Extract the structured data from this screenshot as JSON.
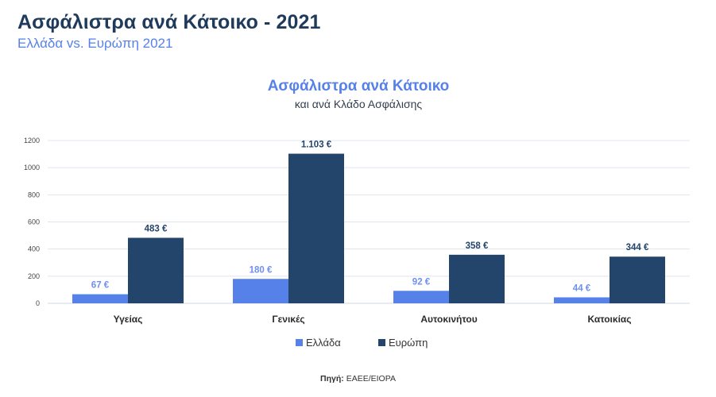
{
  "header": {
    "title": "Ασφάλιστρα ανά Κάτοικο - 2021",
    "subtitle": "Ελλάδα vs. Ευρώπη 2021"
  },
  "chart_data": {
    "type": "bar",
    "title": "Ασφάλιστρα ανά Κάτοικο",
    "subtitle": "και ανά Κλάδο Ασφάλισης",
    "categories": [
      "Υγείας",
      "Γενικές",
      "Αυτοκινήτου",
      "Κατοικίας"
    ],
    "series": [
      {
        "name": "Ελλάδα",
        "values": [
          67,
          180,
          92,
          44
        ],
        "labels": [
          "67 €",
          "180 €",
          "92 €",
          "44 €"
        ],
        "color": "#5681e8"
      },
      {
        "name": "Ευρώπη",
        "values": [
          483,
          1103,
          358,
          344
        ],
        "labels": [
          "483 €",
          "1.103 €",
          "358 €",
          "344 €"
        ],
        "color": "#24456b"
      }
    ],
    "yticks": [
      0,
      200,
      400,
      600,
      800,
      1000,
      1200
    ],
    "ylim": [
      0,
      1200
    ],
    "grid": true,
    "legend_position": "bottom"
  },
  "source": {
    "label": "Πηγή:",
    "text": "ΕΑΕΕ/EIOPA"
  }
}
